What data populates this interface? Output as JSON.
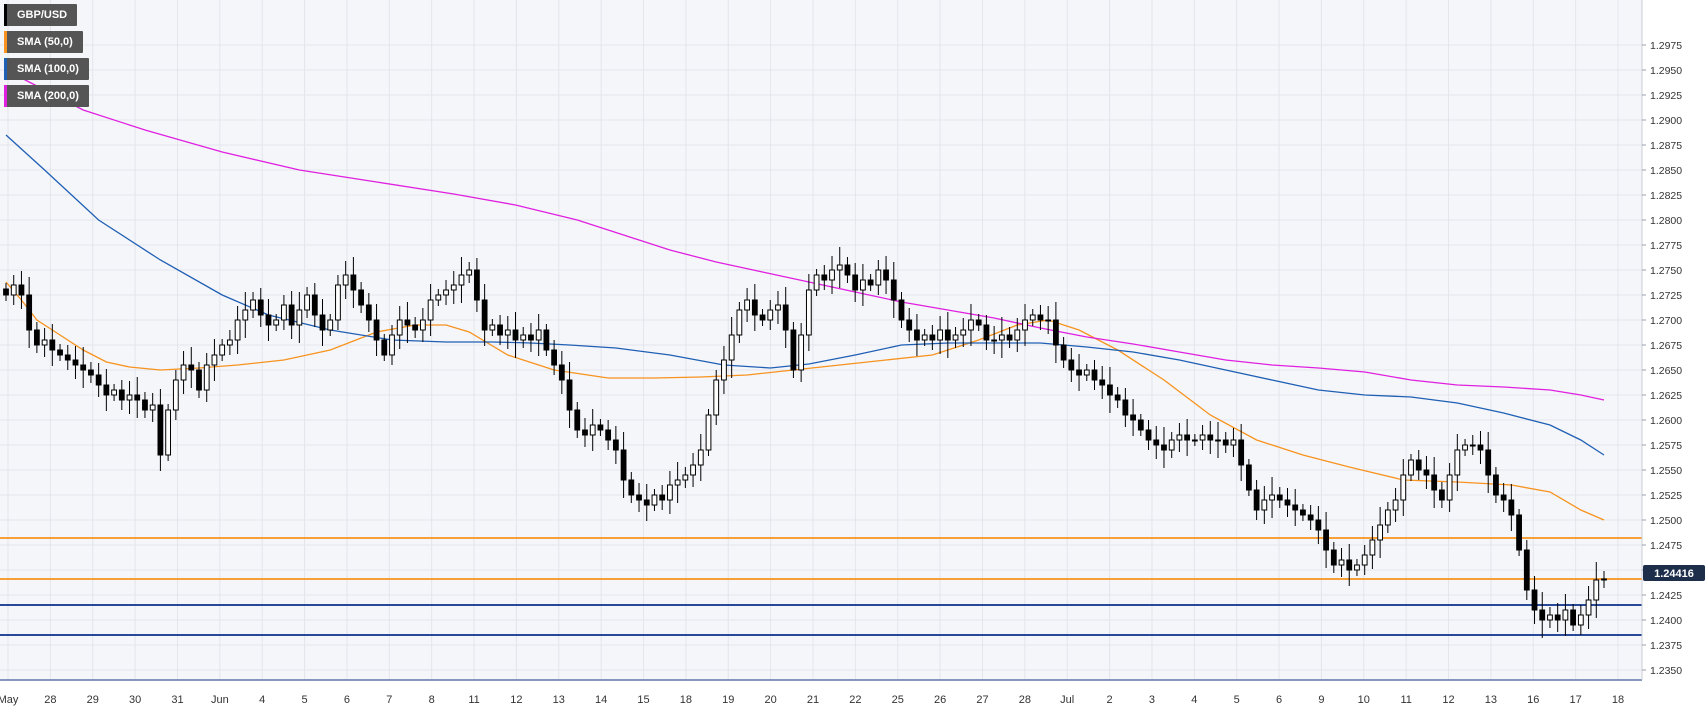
{
  "legend": [
    {
      "label": "GBP/USD",
      "color": "#000000"
    },
    {
      "label": "SMA (50,0)",
      "color": "#f7931e"
    },
    {
      "label": "SMA (100,0)",
      "color": "#1f5fb4"
    },
    {
      "label": "SMA (200,0)",
      "color": "#e020e0"
    }
  ],
  "colors": {
    "background": "#f5f6fa",
    "grid": "#e3e5ec",
    "resistance": "#f7931e",
    "support": "#0b2f8a",
    "bull_candle": "#ffffff",
    "bear_candle": "#000000",
    "price_tag_bg": "#1c2e4a"
  },
  "chart_data": {
    "type": "candlestick",
    "symbol": "GBP/USD",
    "timeframe": "4h",
    "ylim": [
      1.234,
      1.302
    ],
    "last_price": "1.24416",
    "y_ticks": [
      "1.2350",
      "1.2375",
      "1.2400",
      "1.2425",
      "1.2450",
      "1.2475",
      "1.2500",
      "1.2525",
      "1.2550",
      "1.2575",
      "1.2600",
      "1.2625",
      "1.2650",
      "1.2675",
      "1.2700",
      "1.2725",
      "1.2750",
      "1.2775",
      "1.2800",
      "1.2825",
      "1.2850",
      "1.2875",
      "1.2900",
      "1.2925",
      "1.2950",
      "1.2975"
    ],
    "x_ticks": [
      "May",
      "28",
      "29",
      "30",
      "31",
      "Jun",
      "4",
      "5",
      "6",
      "7",
      "8",
      "11",
      "12",
      "13",
      "14",
      "15",
      "18",
      "19",
      "20",
      "21",
      "22",
      "25",
      "26",
      "27",
      "28",
      "Jul",
      "2",
      "3",
      "4",
      "5",
      "6",
      "9",
      "10",
      "11",
      "12",
      "13",
      "16",
      "17",
      "18"
    ],
    "horizontal_levels": [
      {
        "value": 1.2482,
        "role": "resistance"
      },
      {
        "value": 1.2441,
        "role": "resistance"
      },
      {
        "value": 1.2415,
        "role": "support"
      },
      {
        "value": 1.2385,
        "role": "support"
      },
      {
        "value": 1.234,
        "role": "support"
      }
    ],
    "closes": [
      1.2725,
      1.2735,
      1.2725,
      1.269,
      1.2675,
      1.268,
      1.267,
      1.2665,
      1.266,
      1.2655,
      1.265,
      1.2645,
      1.2635,
      1.2625,
      1.263,
      1.262,
      1.2625,
      1.262,
      1.261,
      1.2615,
      1.2565,
      1.261,
      1.264,
      1.2655,
      1.265,
      1.263,
      1.2655,
      1.2665,
      1.2675,
      1.268,
      1.27,
      1.271,
      1.272,
      1.2705,
      1.2695,
      1.27,
      1.2715,
      1.2695,
      1.271,
      1.2725,
      1.2705,
      1.269,
      1.27,
      1.2735,
      1.2745,
      1.273,
      1.2715,
      1.27,
      1.268,
      1.2665,
      1.2685,
      1.27,
      1.2695,
      1.269,
      1.27,
      1.272,
      1.2725,
      1.273,
      1.2735,
      1.2745,
      1.275,
      1.272,
      1.269,
      1.2695,
      1.2685,
      1.269,
      1.268,
      1.2685,
      1.268,
      1.269,
      1.267,
      1.2655,
      1.264,
      1.261,
      1.259,
      1.2585,
      1.2595,
      1.259,
      1.258,
      1.257,
      1.254,
      1.2525,
      1.252,
      1.2515,
      1.2525,
      1.252,
      1.2535,
      1.254,
      1.2545,
      1.2555,
      1.257,
      1.2605,
      1.264,
      1.266,
      1.2685,
      1.271,
      1.272,
      1.2705,
      1.27,
      1.271,
      1.2715,
      1.269,
      1.265,
      1.2685,
      1.273,
      1.2745,
      1.274,
      1.275,
      1.2755,
      1.2745,
      1.273,
      1.274,
      1.2735,
      1.275,
      1.274,
      1.272,
      1.27,
      1.269,
      1.268,
      1.2685,
      1.268,
      1.269,
      1.268,
      1.2685,
      1.269,
      1.27,
      1.2695,
      1.268,
      1.268,
      1.2685,
      1.268,
      1.269,
      1.27,
      1.2705,
      1.27,
      1.27,
      1.2675,
      1.266,
      1.265,
      1.2645,
      1.265,
      1.264,
      1.2635,
      1.2625,
      1.262,
      1.2605,
      1.26,
      1.259,
      1.258,
      1.2575,
      1.257,
      1.258,
      1.2585,
      1.258,
      1.258,
      1.2585,
      1.258,
      1.258,
      1.2575,
      1.258,
      1.2555,
      1.253,
      1.251,
      1.252,
      1.2525,
      1.252,
      1.2515,
      1.251,
      1.2505,
      1.25,
      1.249,
      1.247,
      1.2455,
      1.246,
      1.245,
      1.2455,
      1.2465,
      1.248,
      1.2495,
      1.251,
      1.252,
      1.2545,
      1.256,
      1.255,
      1.2545,
      1.253,
      1.252,
      1.2545,
      1.257,
      1.2575,
      1.2575,
      1.257,
      1.2545,
      1.2525,
      1.252,
      1.2505,
      1.247,
      1.243,
      1.241,
      1.24,
      1.2405,
      1.24,
      1.241,
      1.2395,
      1.2405,
      1.242,
      1.244,
      1.2441
    ],
    "series": [
      {
        "name": "SMA (50,0)",
        "points": [
          [
            0,
            1.2738
          ],
          [
            2,
            1.272
          ],
          [
            4,
            1.27
          ],
          [
            7,
            1.2685
          ],
          [
            10,
            1.267
          ],
          [
            13,
            1.2658
          ],
          [
            16,
            1.2653
          ],
          [
            20,
            1.265
          ],
          [
            25,
            1.2652
          ],
          [
            30,
            1.2655
          ],
          [
            36,
            1.266
          ],
          [
            42,
            1.267
          ],
          [
            48,
            1.2688
          ],
          [
            53,
            1.2695
          ],
          [
            57,
            1.2695
          ],
          [
            60,
            1.2688
          ],
          [
            65,
            1.2665
          ],
          [
            71,
            1.265
          ],
          [
            78,
            1.2642
          ],
          [
            84,
            1.2642
          ],
          [
            90,
            1.2643
          ],
          [
            96,
            1.2645
          ],
          [
            102,
            1.265
          ],
          [
            108,
            1.2655
          ],
          [
            114,
            1.266
          ],
          [
            120,
            1.2665
          ],
          [
            126,
            1.268
          ],
          [
            131,
            1.2695
          ],
          [
            135,
            1.27
          ],
          [
            139,
            1.269
          ],
          [
            144,
            1.267
          ],
          [
            150,
            1.264
          ],
          [
            156,
            1.2605
          ],
          [
            162,
            1.258
          ],
          [
            168,
            1.2565
          ],
          [
            174,
            1.2553
          ],
          [
            181,
            1.254
          ],
          [
            188,
            1.2538
          ],
          [
            195,
            1.2535
          ],
          [
            200,
            1.2528
          ],
          [
            204,
            1.251
          ],
          [
            207,
            1.25
          ]
        ]
      },
      {
        "name": "SMA (100,0)",
        "points": [
          [
            0,
            1.2885
          ],
          [
            5,
            1.285
          ],
          [
            12,
            1.28
          ],
          [
            20,
            1.276
          ],
          [
            28,
            1.2725
          ],
          [
            34,
            1.2705
          ],
          [
            42,
            1.269
          ],
          [
            50,
            1.268
          ],
          [
            57,
            1.2678
          ],
          [
            63,
            1.2678
          ],
          [
            68,
            1.2677
          ],
          [
            73,
            1.2675
          ],
          [
            79,
            1.2672
          ],
          [
            86,
            1.2665
          ],
          [
            93,
            1.2655
          ],
          [
            99,
            1.2652
          ],
          [
            104,
            1.2656
          ],
          [
            110,
            1.2665
          ],
          [
            116,
            1.2675
          ],
          [
            122,
            1.2677
          ],
          [
            128,
            1.2677
          ],
          [
            134,
            1.2677
          ],
          [
            140,
            1.2673
          ],
          [
            146,
            1.2668
          ],
          [
            152,
            1.266
          ],
          [
            158,
            1.265
          ],
          [
            164,
            1.264
          ],
          [
            170,
            1.263
          ],
          [
            176,
            1.2625
          ],
          [
            182,
            1.2623
          ],
          [
            188,
            1.2617
          ],
          [
            194,
            1.2607
          ],
          [
            200,
            1.2595
          ],
          [
            204,
            1.258
          ],
          [
            207,
            1.2565
          ]
        ]
      },
      {
        "name": "SMA (200,0)",
        "points": [
          [
            0,
            1.295
          ],
          [
            5,
            1.293
          ],
          [
            10,
            1.291
          ],
          [
            18,
            1.289
          ],
          [
            28,
            1.2868
          ],
          [
            38,
            1.285
          ],
          [
            48,
            1.2838
          ],
          [
            58,
            1.2826
          ],
          [
            66,
            1.2815
          ],
          [
            74,
            1.28
          ],
          [
            80,
            1.2785
          ],
          [
            86,
            1.277
          ],
          [
            92,
            1.2758
          ],
          [
            98,
            1.2748
          ],
          [
            104,
            1.2738
          ],
          [
            110,
            1.2728
          ],
          [
            116,
            1.2718
          ],
          [
            122,
            1.271
          ],
          [
            128,
            1.2702
          ],
          [
            134,
            1.2692
          ],
          [
            140,
            1.2683
          ],
          [
            146,
            1.2676
          ],
          [
            152,
            1.2668
          ],
          [
            158,
            1.266
          ],
          [
            164,
            1.2655
          ],
          [
            170,
            1.2652
          ],
          [
            176,
            1.2648
          ],
          [
            182,
            1.264
          ],
          [
            188,
            1.2635
          ],
          [
            194,
            1.2633
          ],
          [
            200,
            1.263
          ],
          [
            204,
            1.2625
          ],
          [
            207,
            1.262
          ]
        ]
      }
    ]
  }
}
